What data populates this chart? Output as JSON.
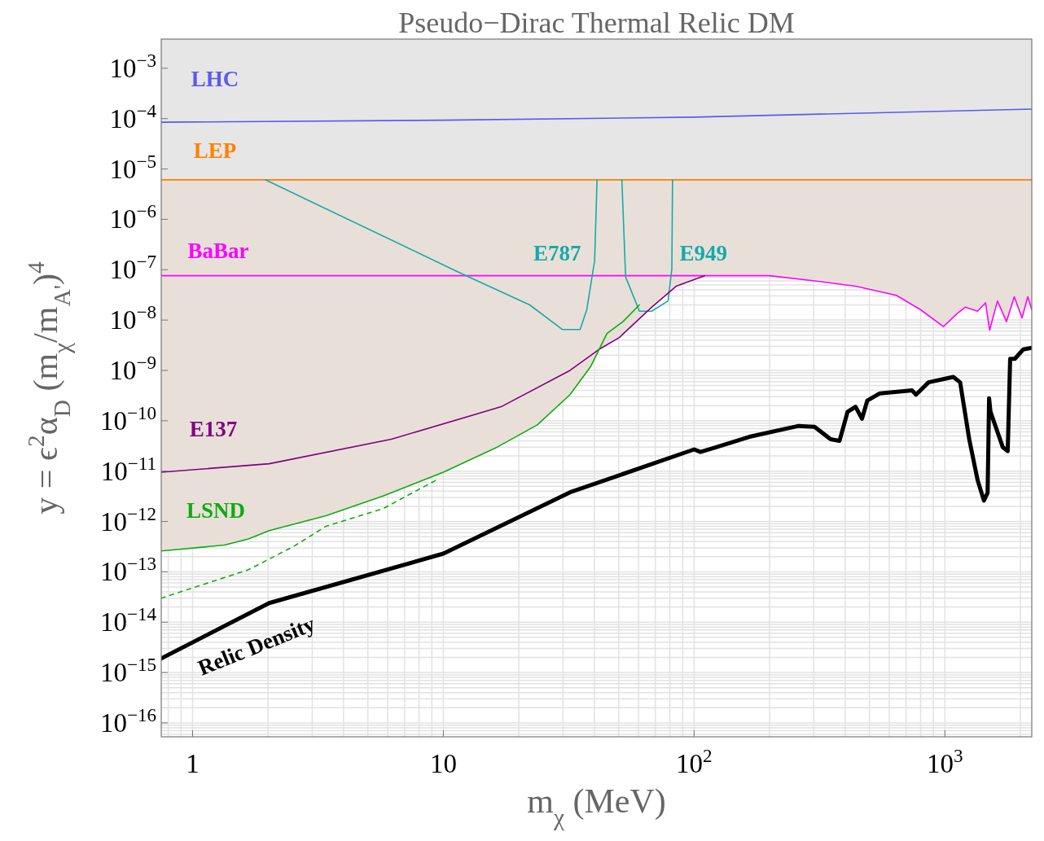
{
  "chart_data": {
    "type": "line",
    "title": "Pseudo−Dirac Thermal Relic DM",
    "xlabel": "m$_{χ}$ (MeV)",
    "ylabel": "y = ϵ$^{2}$α$_{D}$ (m$_{χ}$/m$_{A'}$)$^{4}$",
    "log": "xy",
    "grid": true,
    "legend": false,
    "xlim": [
      0.75,
      2220
    ],
    "ylim": [
      5.3e-17,
      0.0038
    ],
    "xticks": [
      {
        "value": 0.8,
        "label": null
      },
      {
        "value": 0.9,
        "label": null
      },
      1,
      {
        "value": 2,
        "label": null
      },
      {
        "value": 3,
        "label": null
      },
      {
        "value": 4,
        "label": null
      },
      {
        "value": 5,
        "label": null
      },
      {
        "value": 6,
        "label": null
      },
      {
        "value": 7,
        "label": null
      },
      {
        "value": 8,
        "label": null
      },
      {
        "value": 9,
        "label": null
      },
      10,
      {
        "value": 20,
        "label": null
      },
      {
        "value": 30,
        "label": null
      },
      {
        "value": 40,
        "label": null
      },
      {
        "value": 50,
        "label": null
      },
      {
        "value": 60,
        "label": null
      },
      {
        "value": 70,
        "label": null
      },
      {
        "value": 80,
        "label": null
      },
      {
        "value": 90,
        "label": null
      },
      {
        "value": 100,
        "label": "10$^{2}$"
      },
      {
        "value": 200,
        "label": null
      },
      {
        "value": 300,
        "label": null
      },
      {
        "value": 400,
        "label": null
      },
      {
        "value": 500,
        "label": null
      },
      {
        "value": 600,
        "label": null
      },
      {
        "value": 700,
        "label": null
      },
      {
        "value": 800,
        "label": null
      },
      {
        "value": 900,
        "label": null
      },
      {
        "value": 1000,
        "label": "10$^{3}$"
      },
      {
        "value": 2000,
        "label": null
      }
    ],
    "yticks": [
      {
        "value": 6e-17,
        "label": null
      },
      {
        "value": 7e-17,
        "label": null
      },
      {
        "value": 8e-17,
        "label": null
      },
      {
        "value": 9e-17,
        "label": null
      },
      {
        "value": 1e-16,
        "label": "10$^{−16}$"
      },
      {
        "value": 2e-16,
        "label": null
      },
      {
        "value": 3e-16,
        "label": null
      },
      {
        "value": 4e-16,
        "label": null
      },
      {
        "value": 5e-16,
        "label": null
      },
      {
        "value": 6e-16,
        "label": null
      },
      {
        "value": 7e-16,
        "label": null
      },
      {
        "value": 8e-16,
        "label": null
      },
      {
        "value": 9e-16,
        "label": null
      },
      {
        "value": 1e-15,
        "label": "10$^{−15}$"
      },
      {
        "value": 2e-15,
        "label": null
      },
      {
        "value": 3e-15,
        "label": null
      },
      {
        "value": 4e-15,
        "label": null
      },
      {
        "value": 5e-15,
        "label": null
      },
      {
        "value": 6e-15,
        "label": null
      },
      {
        "value": 7e-15,
        "label": null
      },
      {
        "value": 8e-15,
        "label": null
      },
      {
        "value": 9e-15,
        "label": null
      },
      {
        "value": 1e-14,
        "label": "10$^{−14}$"
      },
      {
        "value": 2e-14,
        "label": null
      },
      {
        "value": 3e-14,
        "label": null
      },
      {
        "value": 4e-14,
        "label": null
      },
      {
        "value": 5e-14,
        "label": null
      },
      {
        "value": 6e-14,
        "label": null
      },
      {
        "value": 7e-14,
        "label": null
      },
      {
        "value": 8e-14,
        "label": null
      },
      {
        "value": 9e-14,
        "label": null
      },
      {
        "value": 1e-13,
        "label": "10$^{−13}$"
      },
      {
        "value": 2e-13,
        "label": null
      },
      {
        "value": 3e-13,
        "label": null
      },
      {
        "value": 4e-13,
        "label": null
      },
      {
        "value": 5e-13,
        "label": null
      },
      {
        "value": 6e-13,
        "label": null
      },
      {
        "value": 7e-13,
        "label": null
      },
      {
        "value": 8e-13,
        "label": null
      },
      {
        "value": 9e-13,
        "label": null
      },
      {
        "value": 1e-12,
        "label": "10$^{−12}$"
      },
      {
        "value": 2e-12,
        "label": null
      },
      {
        "value": 3e-12,
        "label": null
      },
      {
        "value": 4e-12,
        "label": null
      },
      {
        "value": 5e-12,
        "label": null
      },
      {
        "value": 6e-12,
        "label": null
      },
      {
        "value": 7e-12,
        "label": null
      },
      {
        "value": 8e-12,
        "label": null
      },
      {
        "value": 9e-12,
        "label": null
      },
      {
        "value": 1e-11,
        "label": "10$^{−11}$"
      },
      {
        "value": 2e-11,
        "label": null
      },
      {
        "value": 3e-11,
        "label": null
      },
      {
        "value": 4e-11,
        "label": null
      },
      {
        "value": 5e-11,
        "label": null
      },
      {
        "value": 6e-11,
        "label": null
      },
      {
        "value": 7e-11,
        "label": null
      },
      {
        "value": 8e-11,
        "label": null
      },
      {
        "value": 9e-11,
        "label": null
      },
      {
        "value": 1e-10,
        "label": "10$^{−10}$"
      },
      {
        "value": 2e-10,
        "label": null
      },
      {
        "value": 3e-10,
        "label": null
      },
      {
        "value": 4e-10,
        "label": null
      },
      {
        "value": 5e-10,
        "label": null
      },
      {
        "value": 6e-10,
        "label": null
      },
      {
        "value": 7e-10,
        "label": null
      },
      {
        "value": 8e-10,
        "label": null
      },
      {
        "value": 9e-10,
        "label": null
      },
      {
        "value": 1e-09,
        "label": "10$^{−9}$"
      },
      {
        "value": 2e-09,
        "label": null
      },
      {
        "value": 3e-09,
        "label": null
      },
      {
        "value": 4e-09,
        "label": null
      },
      {
        "value": 5e-09,
        "label": null
      },
      {
        "value": 6e-09,
        "label": null
      },
      {
        "value": 7e-09,
        "label": null
      },
      {
        "value": 8e-09,
        "label": null
      },
      {
        "value": 9e-09,
        "label": null
      },
      {
        "value": 1e-08,
        "label": "10$^{−8}$"
      },
      {
        "value": 2e-08,
        "label": null
      },
      {
        "value": 3e-08,
        "label": null
      },
      {
        "value": 4e-08,
        "label": null
      },
      {
        "value": 5e-08,
        "label": null
      },
      {
        "value": 6e-08,
        "label": null
      },
      {
        "value": 7e-08,
        "label": null
      },
      {
        "value": 1e-07,
        "label": "10$^{−7}$"
      },
      {
        "value": 1e-06,
        "label": "10$^{−6}$"
      },
      {
        "value": 1e-05,
        "label": "10$^{−5}$"
      },
      {
        "value": 0.0001,
        "label": "10$^{−4}$"
      },
      {
        "value": 0.001,
        "label": "10$^{−3}$"
      }
    ],
    "bands": [
      {
        "axis": "y",
        "from": 6.1e-06,
        "to": 0.0038,
        "color": "#e6e6e6"
      }
    ],
    "series": [
      {
        "name": "LHC",
        "color": "#5a5aee",
        "x": [
          0.75,
          10,
          100,
          2220
        ],
        "values": [
          8.5e-05,
          9.3e-05,
          0.000107,
          0.000155
        ]
      },
      {
        "name": "LEP",
        "color": "#ff8000",
        "x": [
          0.75,
          1.34,
          1.67,
          2.02,
          3.4,
          5.75,
          10,
          16.4,
          23.7,
          32,
          38.7,
          41.7,
          50.3,
          67.7,
          84.8,
          110,
          200,
          302,
          440,
          640,
          800,
          986,
          1119,
          1205,
          1349,
          1452,
          1508,
          1620,
          1760,
          1890,
          2030,
          2140,
          2220
        ],
        "values": [
          6.1e-06,
          6.1e-06,
          6.1e-06,
          6.1e-06,
          6.1e-06,
          6.1e-06,
          6.1e-06,
          6.1e-06,
          6.1e-06,
          6.1e-06,
          6.1e-06,
          6.1e-06,
          6.1e-06,
          6.1e-06,
          6.1e-06,
          6.1e-06,
          6.1e-06,
          6.1e-06,
          6.1e-06,
          6.1e-06,
          6.1e-06,
          6.1e-06,
          6.1e-06,
          6.1e-06,
          6.1e-06,
          6.1e-06,
          6.1e-06,
          6.1e-06,
          6.1e-06,
          6.1e-06,
          6.1e-06,
          6.1e-06,
          6.1e-06
        ],
        "lower": [
          2.6e-13,
          3.4e-13,
          4.5e-13,
          6.6e-13,
          1.3e-12,
          3.2e-12,
          9.5e-12,
          3e-11,
          8.3e-11,
          3.3e-10,
          1.2e-09,
          2.6e-09,
          4.5e-09,
          1.8e-08,
          4.7e-08,
          7.6e-08,
          7.6e-08,
          6e-08,
          4.7e-08,
          3.1e-08,
          1.6e-08,
          7.4e-09,
          1.35e-08,
          1.8e-08,
          1.5e-08,
          2.2e-08,
          6.3e-09,
          2.4e-08,
          9.3e-09,
          2.9e-08,
          1.1e-08,
          2.9e-08,
          1.6e-08
        ],
        "upper": [
          6.1e-06,
          6.1e-06,
          6.1e-06,
          6.1e-06,
          6.1e-06,
          6.1e-06,
          6.1e-06,
          6.1e-06,
          6.1e-06,
          6.1e-06,
          6.1e-06,
          6.1e-06,
          6.1e-06,
          6.1e-06,
          6.1e-06,
          6.1e-06,
          6.1e-06,
          6.1e-06,
          6.1e-06,
          6.1e-06,
          6.1e-06,
          6.1e-06,
          6.1e-06,
          6.1e-06,
          6.1e-06,
          6.1e-06,
          6.1e-06,
          6.1e-06,
          6.1e-06,
          6.1e-06,
          6.1e-06,
          6.1e-06,
          6.1e-06
        ]
      },
      {
        "name": "BaBar",
        "color": "#ff00ff",
        "x": [
          0.75,
          200,
          302,
          440,
          640,
          800,
          986,
          1119,
          1205,
          1349,
          1452,
          1508,
          1620,
          1760,
          1890,
          2030,
          2140,
          2220
        ],
        "values": [
          7.6e-08,
          7.6e-08,
          6e-08,
          4.7e-08,
          3.1e-08,
          1.6e-08,
          7.4e-09,
          1.35e-08,
          1.8e-08,
          1.5e-08,
          2.2e-08,
          6.3e-09,
          2.4e-08,
          9.3e-09,
          2.9e-08,
          1.1e-08,
          2.9e-08,
          1.6e-08
        ]
      },
      {
        "name": "E787",
        "color": "#17a9a9",
        "x": [
          1.95,
          11.3,
          12.6,
          22.1,
          29.8,
          35.1,
          37.3,
          40.1,
          41
        ],
        "values": [
          6.1e-06,
          9.3e-08,
          7.2e-08,
          2e-08,
          6.5e-09,
          6.5e-09,
          1.6e-08,
          1.5e-07,
          6.1e-06
        ]
      },
      {
        "name": "E949",
        "color": "#17a9a9",
        "x": [
          51.5,
          53.3,
          60.5,
          67.7,
          78.7,
          81.5,
          82
        ],
        "values": [
          6.1e-06,
          7.2e-08,
          1.5e-08,
          1.5e-08,
          2.4e-08,
          1.05e-07,
          6.1e-06
        ]
      },
      {
        "name": "E137",
        "color": "#800080",
        "x": [
          0.75,
          2.02,
          6.2,
          17,
          32,
          41.7,
          50.3,
          67.7,
          84.8,
          110
        ],
        "values": [
          9.5e-12,
          1.4e-11,
          4.3e-11,
          1.9e-10,
          1e-09,
          2.6e-09,
          4.5e-09,
          1.8e-08,
          4.7e-08,
          7.6e-08
        ]
      },
      {
        "name": "LSND",
        "color": "#11aa11",
        "x": [
          0.75,
          1.34,
          1.67,
          2.02,
          3.4,
          5.75,
          10,
          16.4,
          23.7,
          32,
          38.7,
          44.9,
          52,
          60.5
        ],
        "values": [
          2.6e-13,
          3.4e-13,
          4.5e-13,
          6.6e-13,
          1.3e-12,
          3.2e-12,
          9.5e-12,
          3e-11,
          8.3e-11,
          3.3e-10,
          1.2e-09,
          5.4e-09,
          9.3e-09,
          2e-08
        ]
      },
      {
        "name": "Relic Density",
        "color": "#000000",
        "x": [
          0.75,
          2.02,
          10,
          32,
          100,
          106,
          123,
          166,
          261,
          302,
          350,
          380,
          409,
          440,
          467,
          490,
          550,
          740,
          767,
          860,
          1080,
          1150,
          1250,
          1350,
          1430,
          1480,
          1500,
          1520,
          1700,
          1780,
          1820,
          1900,
          2050,
          2220
        ],
        "values": [
          1.9e-15,
          2.4e-14,
          2.3e-13,
          3.8e-12,
          2.7e-11,
          2.4e-11,
          3e-11,
          4.8e-11,
          7.9e-11,
          7.6e-11,
          4.3e-11,
          4e-11,
          1.5e-10,
          1.9e-10,
          1.1e-10,
          2.5e-10,
          3.5e-10,
          4e-10,
          3.3e-10,
          5.8e-10,
          7.4e-10,
          5.8e-10,
          4.3e-11,
          6.6e-12,
          2.6e-12,
          3.7e-12,
          2.8e-10,
          1.5e-10,
          3e-11,
          2.5e-11,
          1.7e-09,
          1.7e-09,
          2.6e-09,
          2.8e-09
        ]
      },
      {
        "color": "#11aa11",
        "line_style": "dotted",
        "x": [
          0.75,
          1.67,
          2.53,
          3.4,
          5.75,
          9.35
        ],
        "values": [
          3e-14,
          1.1e-13,
          3.2e-13,
          8e-13,
          1.8e-12,
          6.6e-12
        ]
      }
    ]
  }
}
